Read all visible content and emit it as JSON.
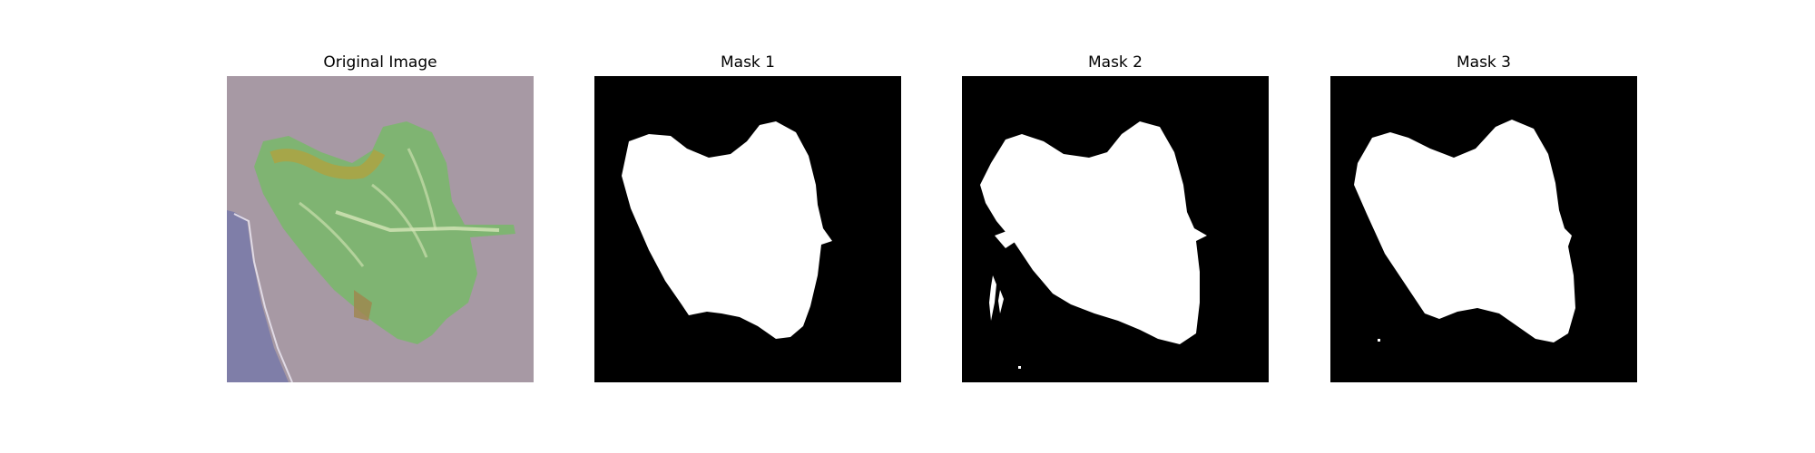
{
  "figure": {
    "panels": [
      {
        "title": "Original Image",
        "kind": "photo"
      },
      {
        "title": "Mask 1",
        "kind": "mask"
      },
      {
        "title": "Mask 2",
        "kind": "mask"
      },
      {
        "title": "Mask 3",
        "kind": "mask"
      }
    ]
  },
  "colors": {
    "background": "#ffffff",
    "mask_background": "#000000",
    "mask_foreground": "#ffffff",
    "photo_background": "#a799a4",
    "photo_shadow": "#7f7ea8",
    "leaf_base": "#7fb472",
    "leaf_highlight": "#d6e6b8",
    "leaf_lesion": "#b3a23c"
  }
}
